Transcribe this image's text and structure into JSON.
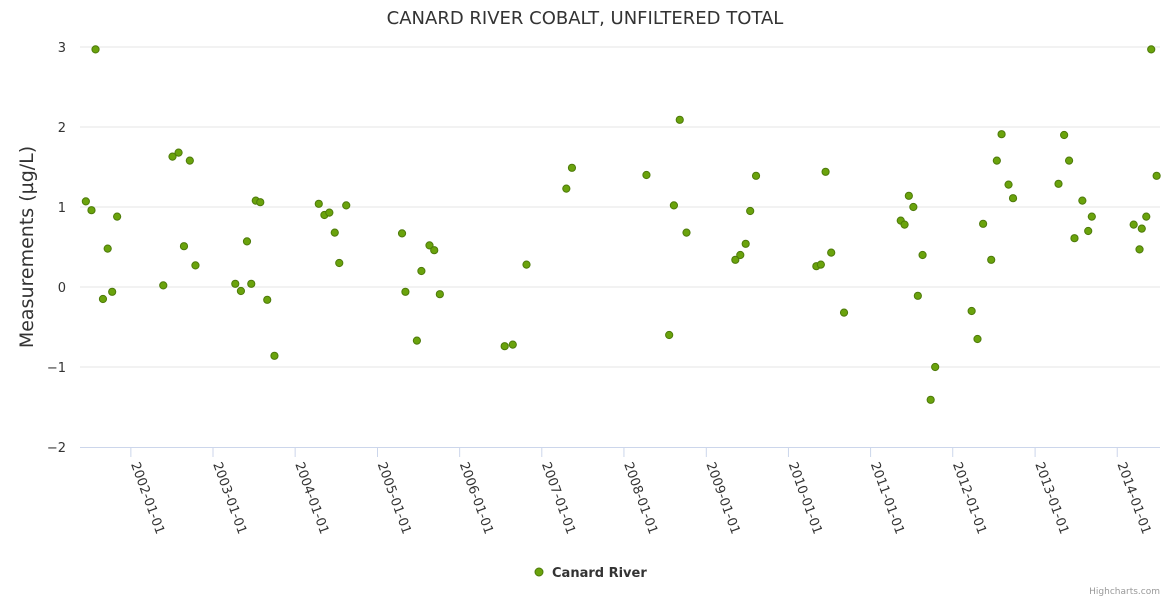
{
  "chart_data": {
    "type": "scatter",
    "title": "CANARD RIVER COBALT, UNFILTERED TOTAL",
    "ylabel": "Measurements (µg/L)",
    "xlabel": "",
    "xlim": [
      "2001-05-20",
      "2014-07-10"
    ],
    "ylim": [
      -2,
      3
    ],
    "y_ticks": [
      -2,
      -1,
      0,
      1,
      2,
      3
    ],
    "x_ticks": [
      "2002-01-01",
      "2003-01-01",
      "2004-01-01",
      "2005-01-01",
      "2006-01-01",
      "2007-01-01",
      "2008-01-01",
      "2009-01-01",
      "2010-01-01",
      "2011-01-01",
      "2012-01-01",
      "2013-01-01",
      "2014-01-01"
    ],
    "grid": true,
    "legend_position": "bottom-center",
    "marker_color": "#6aa30c",
    "marker_stroke": "#4d7a0a",
    "series": [
      {
        "name": "Canard River",
        "points": [
          {
            "x": "2001-06-15",
            "y": 1.07
          },
          {
            "x": "2001-07-10",
            "y": 0.96
          },
          {
            "x": "2001-07-28",
            "y": 2.97
          },
          {
            "x": "2001-08-30",
            "y": -0.15
          },
          {
            "x": "2001-09-20",
            "y": 0.48
          },
          {
            "x": "2001-10-10",
            "y": -0.06
          },
          {
            "x": "2001-11-01",
            "y": 0.88
          },
          {
            "x": "2002-05-25",
            "y": 0.02
          },
          {
            "x": "2002-07-05",
            "y": 1.63
          },
          {
            "x": "2002-08-01",
            "y": 1.68
          },
          {
            "x": "2002-08-25",
            "y": 0.51
          },
          {
            "x": "2002-09-20",
            "y": 1.58
          },
          {
            "x": "2002-10-15",
            "y": 0.27
          },
          {
            "x": "2003-04-10",
            "y": 0.04
          },
          {
            "x": "2003-05-05",
            "y": -0.05
          },
          {
            "x": "2003-06-01",
            "y": 0.57
          },
          {
            "x": "2003-06-20",
            "y": 0.04
          },
          {
            "x": "2003-07-10",
            "y": 1.08
          },
          {
            "x": "2003-07-30",
            "y": 1.06
          },
          {
            "x": "2003-08-30",
            "y": -0.16
          },
          {
            "x": "2003-10-01",
            "y": -0.86
          },
          {
            "x": "2004-04-15",
            "y": 1.04
          },
          {
            "x": "2004-05-10",
            "y": 0.9
          },
          {
            "x": "2004-06-01",
            "y": 0.93
          },
          {
            "x": "2004-06-25",
            "y": 0.68
          },
          {
            "x": "2004-07-15",
            "y": 0.3
          },
          {
            "x": "2004-08-15",
            "y": 1.02
          },
          {
            "x": "2005-04-20",
            "y": 0.67
          },
          {
            "x": "2005-05-05",
            "y": -0.06
          },
          {
            "x": "2005-06-25",
            "y": -0.67
          },
          {
            "x": "2005-07-15",
            "y": 0.2
          },
          {
            "x": "2005-08-20",
            "y": 0.52
          },
          {
            "x": "2005-09-10",
            "y": 0.46
          },
          {
            "x": "2005-10-05",
            "y": -0.09
          },
          {
            "x": "2006-07-20",
            "y": -0.74
          },
          {
            "x": "2006-08-25",
            "y": -0.72
          },
          {
            "x": "2006-10-25",
            "y": 0.28
          },
          {
            "x": "2007-04-20",
            "y": 1.23
          },
          {
            "x": "2007-05-15",
            "y": 1.49
          },
          {
            "x": "2008-04-10",
            "y": 1.4
          },
          {
            "x": "2008-07-20",
            "y": -0.6
          },
          {
            "x": "2008-08-10",
            "y": 1.02
          },
          {
            "x": "2008-09-05",
            "y": 2.09
          },
          {
            "x": "2008-10-05",
            "y": 0.68
          },
          {
            "x": "2009-05-10",
            "y": 0.34
          },
          {
            "x": "2009-06-01",
            "y": 0.4
          },
          {
            "x": "2009-06-25",
            "y": 0.54
          },
          {
            "x": "2009-07-15",
            "y": 0.95
          },
          {
            "x": "2009-08-10",
            "y": 1.39
          },
          {
            "x": "2010-05-05",
            "y": 0.26
          },
          {
            "x": "2010-05-25",
            "y": 0.28
          },
          {
            "x": "2010-06-15",
            "y": 1.44
          },
          {
            "x": "2010-07-10",
            "y": 0.43
          },
          {
            "x": "2010-09-05",
            "y": -0.32
          },
          {
            "x": "2011-05-15",
            "y": 0.83
          },
          {
            "x": "2011-06-01",
            "y": 0.78
          },
          {
            "x": "2011-06-20",
            "y": 1.14
          },
          {
            "x": "2011-07-10",
            "y": 1.0
          },
          {
            "x": "2011-07-30",
            "y": -0.11
          },
          {
            "x": "2011-08-20",
            "y": 0.4
          },
          {
            "x": "2011-09-25",
            "y": -1.41
          },
          {
            "x": "2011-10-15",
            "y": -1.0
          },
          {
            "x": "2012-03-25",
            "y": -0.3
          },
          {
            "x": "2012-04-20",
            "y": -0.65
          },
          {
            "x": "2012-05-15",
            "y": 0.79
          },
          {
            "x": "2012-06-20",
            "y": 0.34
          },
          {
            "x": "2012-07-15",
            "y": 1.58
          },
          {
            "x": "2012-08-05",
            "y": 1.91
          },
          {
            "x": "2012-09-05",
            "y": 1.28
          },
          {
            "x": "2012-09-25",
            "y": 1.11
          },
          {
            "x": "2013-04-15",
            "y": 1.29
          },
          {
            "x": "2013-05-10",
            "y": 1.9
          },
          {
            "x": "2013-06-01",
            "y": 1.58
          },
          {
            "x": "2013-06-25",
            "y": 0.61
          },
          {
            "x": "2013-07-30",
            "y": 1.08
          },
          {
            "x": "2013-08-25",
            "y": 0.7
          },
          {
            "x": "2013-09-10",
            "y": 0.88
          },
          {
            "x": "2014-03-15",
            "y": 0.78
          },
          {
            "x": "2014-04-10",
            "y": 0.47
          },
          {
            "x": "2014-04-20",
            "y": 0.73
          },
          {
            "x": "2014-05-10",
            "y": 0.88
          },
          {
            "x": "2014-06-01",
            "y": 2.97
          },
          {
            "x": "2014-06-25",
            "y": 1.39
          }
        ]
      }
    ]
  },
  "credit": "Highcharts.com"
}
